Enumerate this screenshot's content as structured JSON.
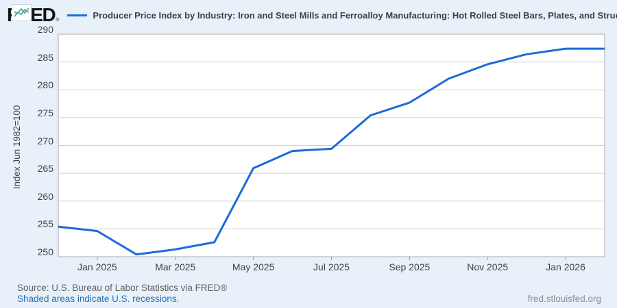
{
  "header": {
    "logo_text": "FRED",
    "logo_registered": "®",
    "series_title": "Producer Price Index by Industry: Iron and Steel Mills and Ferroalloy Manufacturing: Hot Rolled Steel Bars, Plates, and Structural Shapes"
  },
  "footer": {
    "source": "Source: U.S. Bureau of Labor Statistics via FRED®",
    "recession_note": "Shaded areas indicate U.S. recessions.",
    "site": "fred.stlouisfed.org"
  },
  "chart_data": {
    "type": "line",
    "title": "Producer Price Index by Industry: Iron and Steel Mills and Ferroalloy Manufacturing: Hot Rolled Steel Bars, Plates, and Structural Shapes",
    "ylabel": "Index Jun 1982=100",
    "xlabel": "",
    "ylim": [
      250,
      290
    ],
    "yticks": [
      250,
      255,
      260,
      265,
      270,
      275,
      280,
      285,
      290
    ],
    "grid": "horizontal",
    "legend_position": "top",
    "x": [
      "2024-12",
      "2025-01",
      "2025-02",
      "2025-03",
      "2025-04",
      "2025-05",
      "2025-06",
      "2025-07",
      "2025-08",
      "2025-09",
      "2025-10",
      "2025-11",
      "2025-12",
      "2026-01",
      "2026-02"
    ],
    "values": [
      255.4,
      254.6,
      250.4,
      251.3,
      252.6,
      265.9,
      269.0,
      269.4,
      275.4,
      277.7,
      282.0,
      284.6,
      286.4,
      287.4,
      287.4
    ],
    "xticks": [
      {
        "index": 1,
        "label": "Jan 2025"
      },
      {
        "index": 3,
        "label": "Mar 2025"
      },
      {
        "index": 5,
        "label": "May 2025"
      },
      {
        "index": 7,
        "label": "Jul 2025"
      },
      {
        "index": 9,
        "label": "Sep 2025"
      },
      {
        "index": 11,
        "label": "Nov 2025"
      },
      {
        "index": 13,
        "label": "Jan 2026"
      }
    ],
    "line_color": "#1a6cd8"
  },
  "colors": {
    "background": "#e8f1fa",
    "plot_background": "#ffffff",
    "gridline": "#d0d0d0",
    "plot_border": "#a9a9a9",
    "tick_mark": "#9a9a9a",
    "line": "#1a6cd8",
    "link_blue": "#2970b6"
  }
}
